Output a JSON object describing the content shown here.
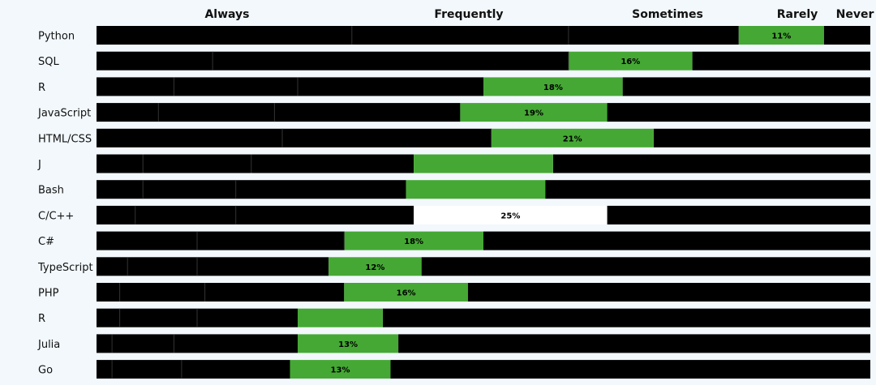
{
  "colors": {
    "background": "#f2f8fc",
    "bar": "#000000",
    "highlight": "#45a834",
    "divider": "#333333",
    "gap": "#ffffff",
    "text": "#111111"
  },
  "chart_data": {
    "type": "bar",
    "orientation": "horizontal",
    "stacked": true,
    "xlim": [
      0,
      100
    ],
    "unit": "%",
    "highlight_series": "Rarely",
    "headers": [
      "Always",
      "Frequently",
      "Sometimes",
      "Rarely",
      "Never"
    ],
    "categories": [
      "Python",
      "SQL",
      "R",
      "JavaScript",
      "HTML/CSS",
      "J",
      "Bash",
      "C/C++",
      "C#",
      "TypeScript",
      "PHP",
      "R",
      "Julia",
      "Go"
    ],
    "series": [
      {
        "name": "Always",
        "values": [
          33,
          15,
          10,
          8,
          24,
          6,
          6,
          5,
          13,
          4,
          3,
          3,
          2,
          2
        ]
      },
      {
        "name": "Frequently",
        "values": [
          28,
          46,
          16,
          15,
          27,
          14,
          12,
          13,
          19,
          9,
          11,
          10,
          8,
          9
        ]
      },
      {
        "name": "Sometimes",
        "values": [
          22,
          0,
          24,
          24,
          0,
          21,
          22,
          23,
          0,
          17,
          18,
          13,
          16,
          14
        ]
      },
      {
        "name": "Rarely",
        "values": [
          11,
          16,
          18,
          19,
          21,
          18,
          18,
          25,
          18,
          12,
          16,
          11,
          13,
          13
        ]
      },
      {
        "name": "Never",
        "values": [
          6,
          23,
          32,
          34,
          28,
          41,
          42,
          34,
          50,
          58,
          52,
          63,
          61,
          62
        ]
      }
    ],
    "value_labels": [
      "11%",
      "16%",
      "18%",
      "19%",
      "21%",
      "",
      "",
      "25%",
      "18%",
      "12%",
      "16%",
      "",
      "13%",
      "13%"
    ],
    "gap_rows": [
      7
    ]
  }
}
